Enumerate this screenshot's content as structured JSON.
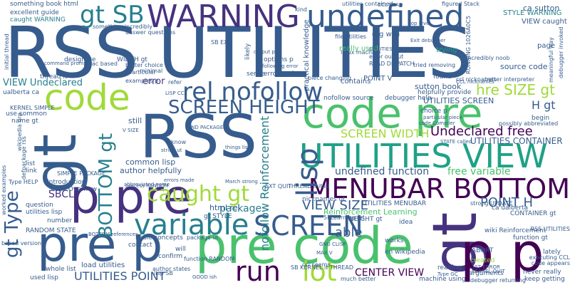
{
  "palette": {
    "dark_purple": "#440154",
    "indigo": "#46327e",
    "blue": "#365c8d",
    "teal": "#277f8e",
    "green_teal": "#1fa187",
    "green": "#4ac16d",
    "yellow_green": "#a0da39"
  },
  "words": [
    {
      "id": "rss-utilities",
      "text": "RSS UTILITIES"
    },
    {
      "id": "warning",
      "text": "WARNING"
    },
    {
      "id": "undefined",
      "text": "undefined"
    },
    {
      "id": "rss-large",
      "text": "RSS"
    },
    {
      "id": "gt-large",
      "text": "gt"
    },
    {
      "id": "code-pre",
      "text": "code pre"
    },
    {
      "id": "pre-code",
      "text": "pre code"
    },
    {
      "id": "pre-p-bottom",
      "text": "pre p"
    },
    {
      "id": "p-pre",
      "text": "p pre"
    },
    {
      "id": "gt-right",
      "text": "gt"
    },
    {
      "id": "p-p",
      "text": "p p"
    },
    {
      "id": "code-left",
      "text": "code"
    },
    {
      "id": "utilities-view",
      "text": "UTILITIES VIEW"
    },
    {
      "id": "menubar-bottom",
      "text": "MENUBAR BOTTOM"
    },
    {
      "id": "variable",
      "text": "variable"
    },
    {
      "id": "screen",
      "text": "SCREEN"
    },
    {
      "id": "rel-nofollow",
      "text": "rel nofollow"
    },
    {
      "id": "screen-height",
      "text": "SCREEN HEIGHT"
    },
    {
      "id": "caught-gt",
      "text": "caught gt"
    },
    {
      "id": "run",
      "text": "run"
    },
    {
      "id": "lot",
      "text": "lot"
    },
    {
      "id": "gt-sb",
      "text": "gt SB"
    },
    {
      "id": "lisp",
      "text": "lisp"
    },
    {
      "id": "bottom-gt",
      "text": "BOTTOM gt"
    },
    {
      "id": "gt-type",
      "text": "gt Type"
    },
    {
      "id": "nofollow-reinforcement",
      "text": "nofollow Reinforcement"
    },
    {
      "id": "screen-width",
      "text": "SCREEN WIDTH"
    },
    {
      "id": "undeclared-free",
      "text": "Undeclared free"
    },
    {
      "id": "undefined-function",
      "text": "undefined function"
    },
    {
      "id": "free-variable",
      "text": "free variable"
    },
    {
      "id": "utilities-container",
      "text": "UTILITIES CONTAINER"
    },
    {
      "id": "view-size",
      "text": "VIEW SIZE"
    },
    {
      "id": "point-h",
      "text": "POINT H"
    },
    {
      "id": "center-view",
      "text": "CENTER VIEW"
    },
    {
      "id": "utilities-point",
      "text": "UTILITIES POINT"
    },
    {
      "id": "view-undeclared",
      "text": "VIEW Undeclared"
    },
    {
      "id": "hre-size-gt",
      "text": "hre SIZE gt"
    },
    {
      "id": "h-gt",
      "text": "H gt"
    },
    {
      "id": "package",
      "text": "package"
    },
    {
      "id": "able",
      "text": "able"
    },
    {
      "id": "sbcl",
      "text": "SBCL"
    },
    {
      "id": "reinforcement-learning",
      "text": "Reinforcement Learning"
    },
    {
      "id": "common-lisp",
      "text": "common lisp"
    },
    {
      "id": "author-helpfully",
      "text": "author helpfully"
    },
    {
      "id": "html-rel",
      "text": "html rel"
    },
    {
      "id": "error",
      "text": "error"
    },
    {
      "id": "still",
      "text": "still"
    },
    {
      "id": "sutton-book",
      "text": "sutton book"
    },
    {
      "id": "utilities-screen",
      "text": "UTILITIES SCREEN"
    },
    {
      "id": "source-code",
      "text": "source code"
    },
    {
      "id": "ca-sutton",
      "text": "ca sutton"
    },
    {
      "id": "style-warning",
      "text": "STYLE WARNING"
    },
    {
      "id": "view-caught",
      "text": "VIEW caught"
    },
    {
      "id": "page",
      "text": "page"
    },
    {
      "id": "trying",
      "text": "trying"
    },
    {
      "id": "contains",
      "text": "contains"
    },
    {
      "id": "really-used",
      "text": "really used"
    },
    {
      "id": "org-wiki",
      "text": "org wiki"
    },
    {
      "id": "file-utilities",
      "text": "file utilities"
    },
    {
      "id": "something-book-html",
      "text": "something book html"
    },
    {
      "id": "excellent-guide",
      "text": "excellent guide"
    },
    {
      "id": "caught-warning",
      "text": "caught WARNING"
    },
    {
      "id": "designate",
      "text": "designate"
    },
    {
      "id": "thread-it",
      "text": "thread it"
    },
    {
      "id": "width-gt",
      "text": "WIDTH gt"
    },
    {
      "id": "minimal",
      "text": "minimal"
    },
    {
      "id": "examples-p",
      "text": "examples p"
    },
    {
      "id": "particular",
      "text": "particular"
    },
    {
      "id": "refer",
      "text": "refer"
    },
    {
      "id": "sense",
      "text": "sense"
    },
    {
      "id": "found",
      "text": "found"
    },
    {
      "id": "helpfully-provide",
      "text": "helpfully provide"
    },
    {
      "id": "begin",
      "text": "begin"
    },
    {
      "id": "function-gt",
      "text": "function gt"
    },
    {
      "id": "ca-ualberta",
      "text": "ca ualberta"
    },
    {
      "id": "container-gt",
      "text": "CONTAINER gt"
    },
    {
      "id": "abort",
      "text": "ABORT"
    },
    {
      "id": "lately",
      "text": "lately"
    },
    {
      "id": "never-really",
      "text": "never really"
    },
    {
      "id": "keep-getting",
      "text": "keep getting"
    },
    {
      "id": "arguments",
      "text": "arguments"
    },
    {
      "id": "machine-using",
      "text": "machine using"
    },
    {
      "id": "reading",
      "text": "reading"
    },
    {
      "id": "created",
      "text": "created"
    },
    {
      "id": "en-wikipedia",
      "text": "en wikipedia"
    },
    {
      "id": "idea",
      "text": "idea"
    },
    {
      "id": "works",
      "text": "works"
    },
    {
      "id": "wiki-reinforcement",
      "text": "wiki Reinforcement"
    },
    {
      "id": "rss-utilities-small",
      "text": "RSS UTILITIES"
    },
    {
      "id": "confirm",
      "text": "confirm"
    },
    {
      "id": "will",
      "text": "will"
    },
    {
      "id": "load-utilities",
      "text": "load utilities"
    },
    {
      "id": "used-lisp",
      "text": "used lisp"
    },
    {
      "id": "whole-list",
      "text": "whole list"
    },
    {
      "id": "basic-concepts",
      "text": "basic concepts"
    },
    {
      "id": "contact",
      "text": "contact"
    },
    {
      "id": "number",
      "text": "number"
    },
    {
      "id": "random-state",
      "text": "RANDOM STATE"
    },
    {
      "id": "question",
      "text": "question"
    },
    {
      "id": "utilities-lisp",
      "text": "utilities lisp"
    },
    {
      "id": "stack-overflow",
      "text": "Stack Overflow"
    },
    {
      "id": "simple-package",
      "text": "SIMPLE PACKAGE"
    },
    {
      "id": "introduction",
      "text": "Introduction"
    },
    {
      "id": "ualberta-ca",
      "text": "ualberta ca"
    },
    {
      "id": "use-common",
      "text": "use common"
    },
    {
      "id": "kernel-simple",
      "text": "KERNEL SIMPLE"
    },
    {
      "id": "name-gt",
      "text": "name gt"
    },
    {
      "id": "list",
      "text": "list"
    },
    {
      "id": "link",
      "text": "link"
    },
    {
      "id": "initial-thread",
      "text": "initial thread"
    },
    {
      "id": "worked-examples",
      "text": "worked examples"
    },
    {
      "id": "practical-knowledge",
      "text": "practical knowledge"
    },
    {
      "id": "likely",
      "text": "likely"
    },
    {
      "id": "options-p",
      "text": "options p"
    },
    {
      "id": "errors-using",
      "text": "errors using"
    },
    {
      "id": "nicknames-ut",
      "text": "nicknames ut"
    },
    {
      "id": "thread-initial",
      "text": "THREAD initial"
    },
    {
      "id": "gt-style",
      "text": "gt STYLE"
    },
    {
      "id": "point-v",
      "text": "POINT V"
    },
    {
      "id": "nofollow-source",
      "text": "nofollow source"
    },
    {
      "id": "debugger-help",
      "text": "debugger help"
    },
    {
      "id": "choice-p",
      "text": "choice p"
    },
    {
      "id": "weight-gt",
      "text": "WEIGHT gt"
    },
    {
      "id": "5flearning-rel",
      "text": "5FLearning rel"
    },
    {
      "id": "utilities-menubar",
      "text": "UTILITIES MENUBAR"
    },
    {
      "id": "sb-kernel-it-thread",
      "text": "SB KERNEL it THREAD"
    },
    {
      "id": "figured-stack",
      "text": "figured Stack"
    },
    {
      "id": "something-incredibly",
      "text": "something incredibly"
    },
    {
      "id": "answer-questions",
      "text": "answer questions"
    },
    {
      "id": "mac-based",
      "text": "Mac based"
    },
    {
      "id": "better-choice",
      "text": "better choice"
    },
    {
      "id": "kind",
      "text": "kind"
    },
    {
      "id": "utilities-contained",
      "text": "utilities contained"
    },
    {
      "id": "linux-machine",
      "text": "linux machine"
    },
    {
      "id": "incredibly-noob",
      "text": "incredibly noob"
    },
    {
      "id": "running-1026",
      "text": "RUNNING 1026A0C5"
    },
    {
      "id": "meaningful-way",
      "text": "meaningful way"
    },
    {
      "id": "debugger-invoked",
      "text": "debugger invoked"
    },
    {
      "id": "sb-ext",
      "text": "SB EXT"
    },
    {
      "id": "wikipedia-org",
      "text": "wikipedia org"
    },
    {
      "id": "defpackage-rss",
      "text": "defpackage rss"
    },
    {
      "id": "know",
      "text": "know"
    },
    {
      "id": "error-output",
      "text": "error output"
    },
    {
      "id": "read-dispatch",
      "text": "READ DISPATCH"
    },
    {
      "id": "possibly-abbreviated",
      "text": "possibly abbreviated"
    },
    {
      "id": "code-appears",
      "text": "code appears"
    },
    {
      "id": "executing-ccl",
      "text": "executing CCL"
    },
    {
      "id": "ccl-nicknames",
      "text": "ccl nicknames"
    },
    {
      "id": "better-interpreter",
      "text": "better interpreter"
    },
    {
      "id": "based-version",
      "text": "based version"
    },
    {
      "id": "type-help",
      "text": "Type HELP"
    },
    {
      "id": "ext-quit",
      "text": "EXT QUIT"
    },
    {
      "id": "strong-update",
      "text": "strong UPDATE"
    },
    {
      "id": "ccl-seems",
      "text": "ccl seems"
    },
    {
      "id": "much-better",
      "text": "much better"
    },
    {
      "id": "debugger-returning",
      "text": "debugger returning"
    },
    {
      "id": "tried-removing",
      "text": "tried removing"
    },
    {
      "id": "piece-changing",
      "text": "piece changing"
    },
    {
      "id": "bottom-references",
      "text": "BOTTOM references"
    },
    {
      "id": "lisp-sb",
      "text": "lisp SB"
    },
    {
      "id": "author-states",
      "text": "author states"
    },
    {
      "id": "function-random",
      "text": "function RANDOM"
    },
    {
      "id": "package-ut",
      "text": "package ut"
    },
    {
      "id": "abbreviated-name",
      "text": "abbreviated name"
    },
    {
      "id": "march-strong",
      "text": "March strong"
    },
    {
      "id": "find-package",
      "text": "FIND PACKAGE"
    },
    {
      "id": "things-lisp",
      "text": "things lisp"
    },
    {
      "id": "code-compiler",
      "text": "code Compiler"
    },
    {
      "id": "state-called",
      "text": "STATE called"
    },
    {
      "id": "particular-piece",
      "text": "particular piece"
    },
    {
      "id": "output-p",
      "text": "output p"
    },
    {
      "id": "top-level",
      "text": "top level"
    },
    {
      "id": "exit-debugger",
      "text": "Exit debugger"
    },
    {
      "id": "command-prompt",
      "text": "command prompt"
    },
    {
      "id": "following-error",
      "text": "following error"
    },
    {
      "id": "lisp-ccl",
      "text": "LISP CCL"
    },
    {
      "id": "utilities-max",
      "text": "UTILITIES MAX"
    },
    {
      "id": "max-v",
      "text": "MAX V"
    },
    {
      "id": "ccl-read",
      "text": "CCL READ"
    },
    {
      "id": "good-ish",
      "text": "GOOD ish"
    },
    {
      "id": "gnu-clisp",
      "text": "GNU CLISP"
    },
    {
      "id": "type-gc",
      "text": "Type GC"
    },
    {
      "id": "1st-error",
      "text": "1ST ERROR"
    },
    {
      "id": "kernel-quit",
      "text": "KERNEL QUIT"
    },
    {
      "id": "errors-made",
      "text": "errors made"
    },
    {
      "id": "ccl-nicknames-2",
      "text": "CCL nicknames"
    },
    {
      "id": "v-size",
      "text": "V SIZE"
    },
    {
      "id": "process-random",
      "text": "process RANDOM"
    },
    {
      "id": "string-ut",
      "text": "string ut"
    }
  ]
}
